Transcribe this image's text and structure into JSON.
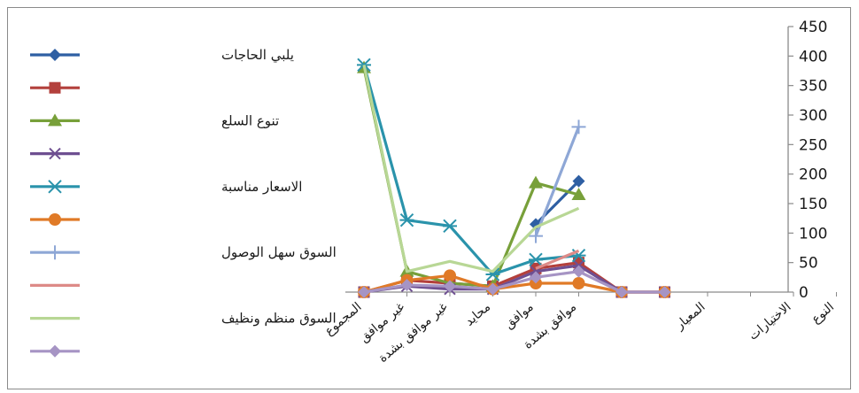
{
  "chart_data": {
    "type": "line",
    "title": "",
    "xlabel": "",
    "ylabel": "",
    "ylim": [
      0,
      450
    ],
    "y_ticks": [
      0,
      50,
      100,
      150,
      200,
      250,
      300,
      350,
      400,
      450
    ],
    "y_axis_side": "right",
    "grid": false,
    "legend_position": "left",
    "categories": [
      "المجموع",
      "غير موافق",
      "غير موافق بشدة",
      "محايد",
      "موافق",
      "موافق بشدة",
      "",
      "",
      "المعيار",
      "",
      "الاختيارات",
      "النوع"
    ],
    "series": [
      {
        "name": "يلبي الحاجات",
        "color": "#2e5fa3",
        "marker": "diamond",
        "values": [
          null,
          null,
          null,
          null,
          115,
          188,
          null,
          null,
          null,
          null,
          null,
          null
        ]
      },
      {
        "name": "",
        "color": "#b3403c",
        "marker": "square",
        "values": [
          0,
          20,
          15,
          10,
          40,
          50,
          0,
          0,
          null,
          null,
          null,
          null
        ]
      },
      {
        "name": "تنوع السلع",
        "color": "#78a03a",
        "marker": "triangle",
        "values": [
          380,
          35,
          15,
          10,
          185,
          165,
          null,
          null,
          null,
          null,
          null,
          null
        ]
      },
      {
        "name": "",
        "color": "#6e4f91",
        "marker": "x",
        "values": [
          0,
          10,
          5,
          5,
          35,
          45,
          0,
          0,
          null,
          null,
          null,
          null
        ]
      },
      {
        "name": "الاسعار مناسبة",
        "color": "#2a93ab",
        "marker": "asterisk",
        "values": [
          385,
          122,
          112,
          30,
          55,
          62,
          null,
          null,
          null,
          null,
          null,
          null
        ]
      },
      {
        "name": "",
        "color": "#e07a27",
        "marker": "circle",
        "values": [
          0,
          20,
          28,
          5,
          15,
          15,
          0,
          0,
          null,
          null,
          null,
          null
        ]
      },
      {
        "name": "السوق سهل الوصول",
        "color": "#8ea7d6",
        "marker": "plus",
        "values": [
          null,
          null,
          null,
          null,
          95,
          280,
          null,
          null,
          null,
          null,
          null,
          null
        ]
      },
      {
        "name": "",
        "color": "#dd8a87",
        "marker": "none",
        "values": [
          null,
          null,
          null,
          null,
          40,
          70,
          null,
          null,
          null,
          null,
          null,
          null
        ]
      },
      {
        "name": "السوق منظم ونظيف",
        "color": "#b8d795",
        "marker": "none",
        "values": [
          385,
          35,
          52,
          35,
          110,
          142,
          null,
          null,
          null,
          null,
          null,
          null
        ]
      },
      {
        "name": "",
        "color": "#a694c4",
        "marker": "diamond",
        "values": [
          0,
          12,
          10,
          5,
          25,
          35,
          0,
          0,
          null,
          null,
          null,
          null
        ]
      }
    ]
  }
}
